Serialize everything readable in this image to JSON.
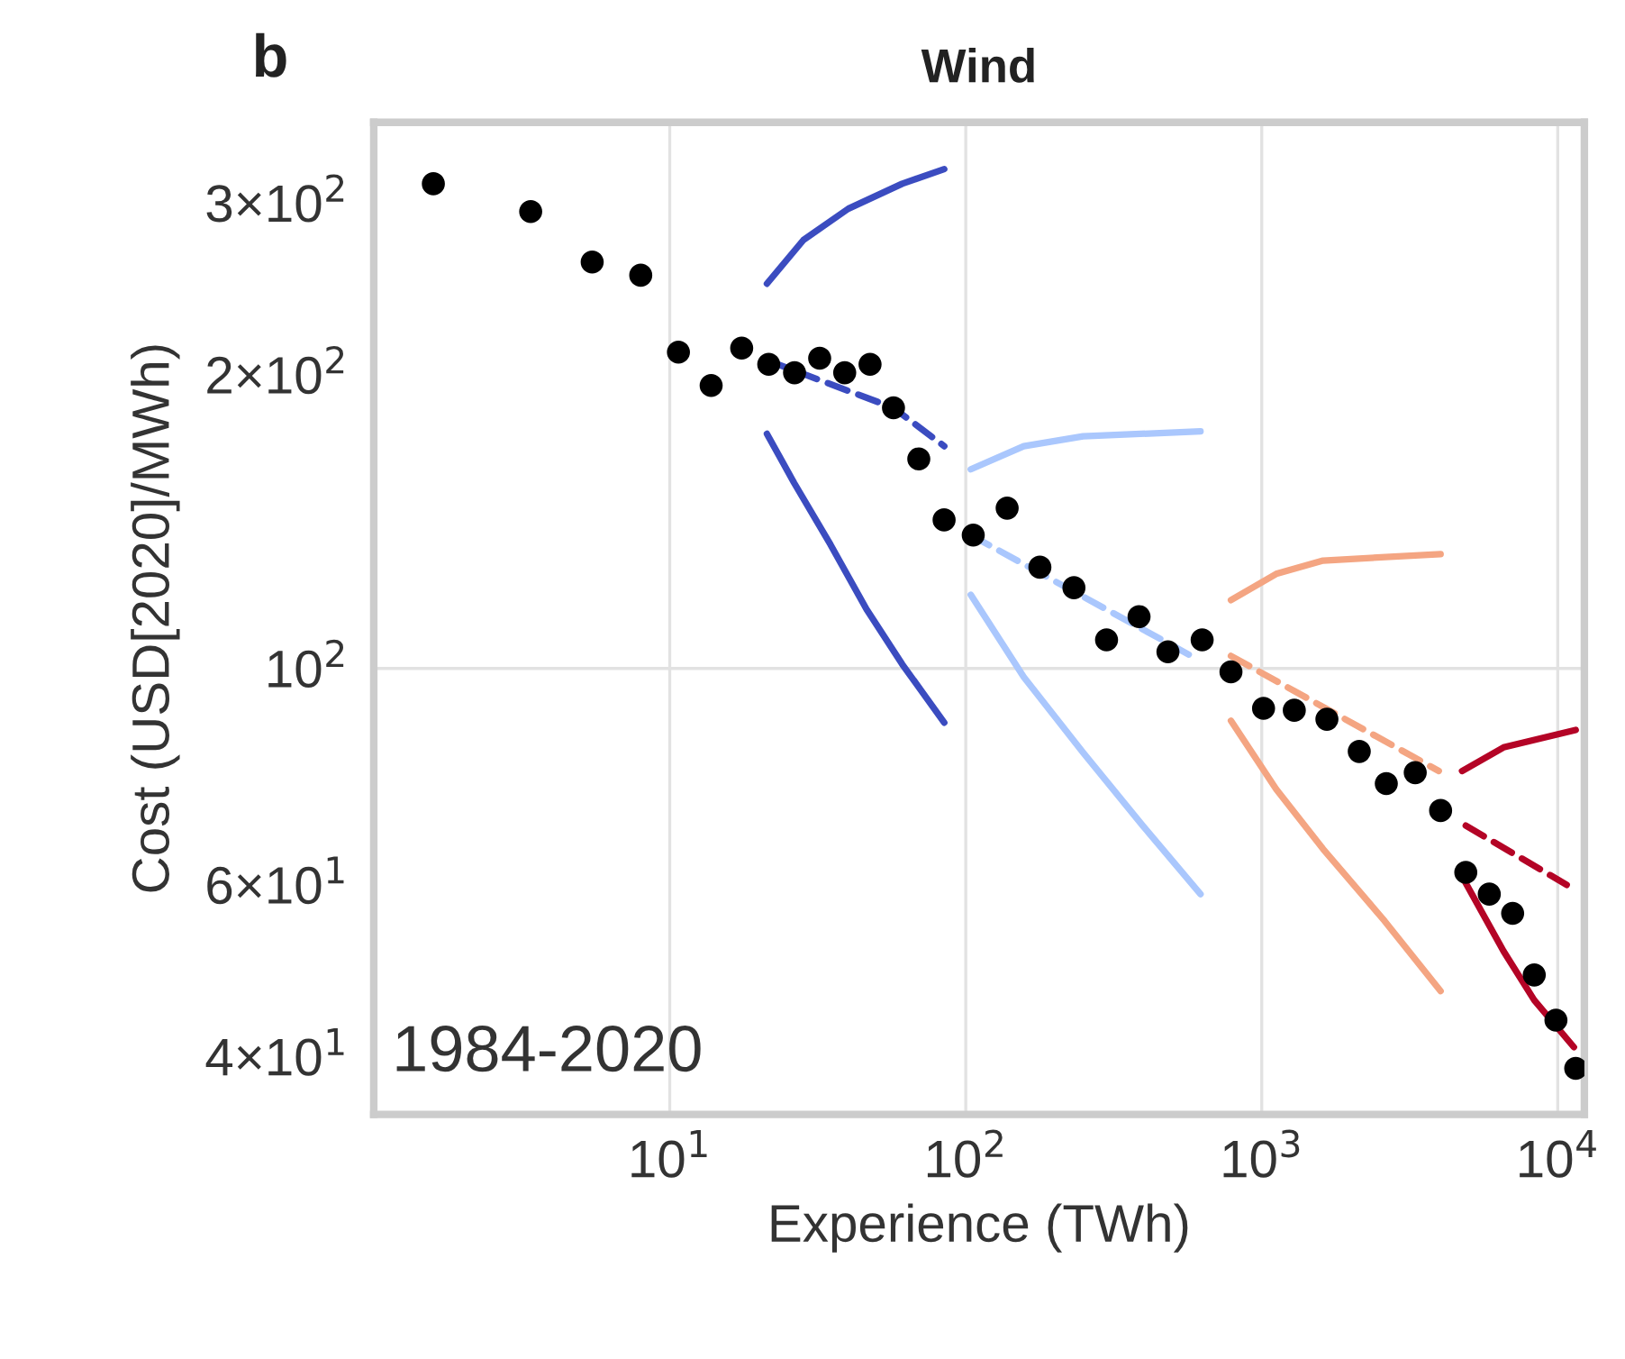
{
  "chart_data": {
    "type": "scatter",
    "title": "Wind",
    "xlabel": "Experience (TWh)",
    "ylabel": "Cost (USD[2020]/MWh)",
    "annotations": [
      "b",
      "1984-2020"
    ],
    "log": "xy",
    "grid": true,
    "xlim": [
      1.0,
      12300
    ],
    "ylim": [
      34.9,
      363
    ],
    "xticks": [
      {
        "value": 10,
        "label": "10$^{1}$"
      },
      {
        "value": 100,
        "label": "10$^{2}$"
      },
      {
        "value": 1000,
        "label": "10$^{3}$"
      },
      {
        "value": 10000,
        "label": "10$^{4}$"
      }
    ],
    "yticks": [
      {
        "value": 40,
        "label": "4×10$^{1}$"
      },
      {
        "value": 60,
        "label": "6×10$^{1}$"
      },
      {
        "value": 100,
        "label": "10$^{2}$"
      },
      {
        "value": 200,
        "label": "2×10$^{2}$"
      },
      {
        "value": 300,
        "label": "3×10$^{2}$"
      }
    ],
    "series": [
      {
        "type": "scatter",
        "color": "#000000",
        "marker": "circle",
        "x": [
          1.59,
          3.39,
          5.47,
          7.98,
          10.7,
          13.8,
          17.5,
          21.6,
          26.4,
          32.1,
          39.0,
          47.5,
          57.0,
          69.4,
          84.5,
          106,
          138,
          178,
          232,
          299,
          385,
          482,
          629,
          787,
          1014,
          1288,
          1660,
          2135,
          2635,
          3300,
          4020,
          4890,
          5870,
          7040,
          8330,
          9860,
          11500
        ],
        "values": [
          314,
          294,
          261,
          253,
          211,
          195,
          213,
          205,
          201,
          208,
          201,
          205,
          185,
          164,
          142,
          137,
          146,
          127,
          121,
          107,
          113,
          104,
          107,
          99.2,
          91,
          90.6,
          88.7,
          82.2,
          76.2,
          78.2,
          71.5,
          61.8,
          58.7,
          56.1,
          48.5,
          43.6,
          38.9
        ]
      },
      {
        "type": "line",
        "color": "#3b4cc0",
        "line_style": "solid",
        "x": [
          21.3,
          28.3,
          40.1,
          61,
          84.6
        ],
        "values": [
          248,
          275,
          296,
          314,
          325
        ]
      },
      {
        "type": "line",
        "color": "#3b4cc0",
        "line_style": "dashed",
        "x": [
          21.3,
          57,
          84.6
        ],
        "values": [
          207,
          185,
          169
        ]
      },
      {
        "type": "line",
        "color": "#3b4cc0",
        "line_style": "solid",
        "x": [
          21.3,
          26.3,
          34.9,
          46.2,
          61,
          84.6
        ],
        "values": [
          174,
          155,
          134,
          115,
          101,
          88
        ]
      },
      {
        "type": "line",
        "color": "#aac7fd",
        "line_style": "solid",
        "x": [
          104,
          157,
          249,
          621
        ],
        "values": [
          160,
          169,
          173,
          175
        ]
      },
      {
        "type": "line",
        "color": "#aac7fd",
        "line_style": "dashed",
        "x": [
          104,
          578
        ],
        "values": [
          137,
          103
        ]
      },
      {
        "type": "line",
        "color": "#aac7fd",
        "line_style": "solid",
        "x": [
          104,
          157,
          249,
          396,
          621
        ],
        "values": [
          119,
          98,
          82,
          69,
          58.7
        ]
      },
      {
        "type": "line",
        "color": "#f4a582",
        "line_style": "solid",
        "x": [
          787,
          1119,
          1611,
          4020
        ],
        "values": [
          117.5,
          125,
          129,
          131
        ]
      },
      {
        "type": "line",
        "color": "#f4a582",
        "line_style": "dashed",
        "x": [
          787,
          3963
        ],
        "values": [
          103,
          78.5
        ]
      },
      {
        "type": "line",
        "color": "#f4a582",
        "line_style": "solid",
        "x": [
          787,
          1119,
          1611,
          2600,
          4020
        ],
        "values": [
          88.4,
          75.2,
          65.3,
          55.1,
          46.7
        ]
      },
      {
        "type": "line",
        "color": "#b40426",
        "line_style": "solid",
        "x": [
          4750,
          6560,
          11500
        ],
        "values": [
          78.5,
          83,
          86.5
        ]
      },
      {
        "type": "line",
        "color": "#b40426",
        "line_style": "dashed",
        "x": [
          4890,
          10720
        ],
        "values": [
          69,
          60
        ]
      },
      {
        "type": "line",
        "color": "#b40426",
        "line_style": "solid",
        "x": [
          4750,
          6560,
          8330,
          11340
        ],
        "values": [
          61.2,
          51.3,
          45.7,
          40.9
        ]
      }
    ]
  }
}
